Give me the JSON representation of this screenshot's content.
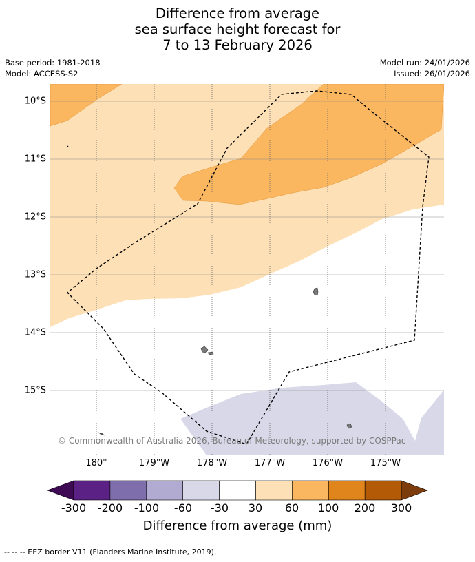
{
  "title": {
    "line1": "Difference from average",
    "line2": "sea surface height forecast for",
    "line3": "7 to 13 February 2026"
  },
  "meta": {
    "base_period": "Base period: 1981-2018",
    "model": "Model: ACCESS-S2",
    "model_run": "Model run: 24/01/2026",
    "issued": "Issued: 26/01/2026"
  },
  "map": {
    "lat_labels": [
      "10°S",
      "11°S",
      "12°S",
      "13°S",
      "14°S",
      "15°S"
    ],
    "lon_labels": [
      "180°",
      "179°W",
      "178°W",
      "177°W",
      "176°W",
      "175°W"
    ],
    "copyright": "© Commonwealth of Australia 2026, Bureau of Meteorology, supported by COSPPac"
  },
  "colorbar": {
    "colors": [
      "#3f0a54",
      "#5b2185",
      "#7e6eab",
      "#b1abd2",
      "#d8d8e9",
      "#ffffff",
      "#fde0b5",
      "#fbb660",
      "#e0841c",
      "#b35a06",
      "#7d3c0b"
    ],
    "labels": [
      "-300",
      "-200",
      "-100",
      "-60",
      "-30",
      "30",
      "60",
      "100",
      "200",
      "300"
    ],
    "title": "Difference from average (mm)"
  },
  "footnote": "--  --  -- EEZ border V11 (Flanders Marine Institute, 2019)."
}
